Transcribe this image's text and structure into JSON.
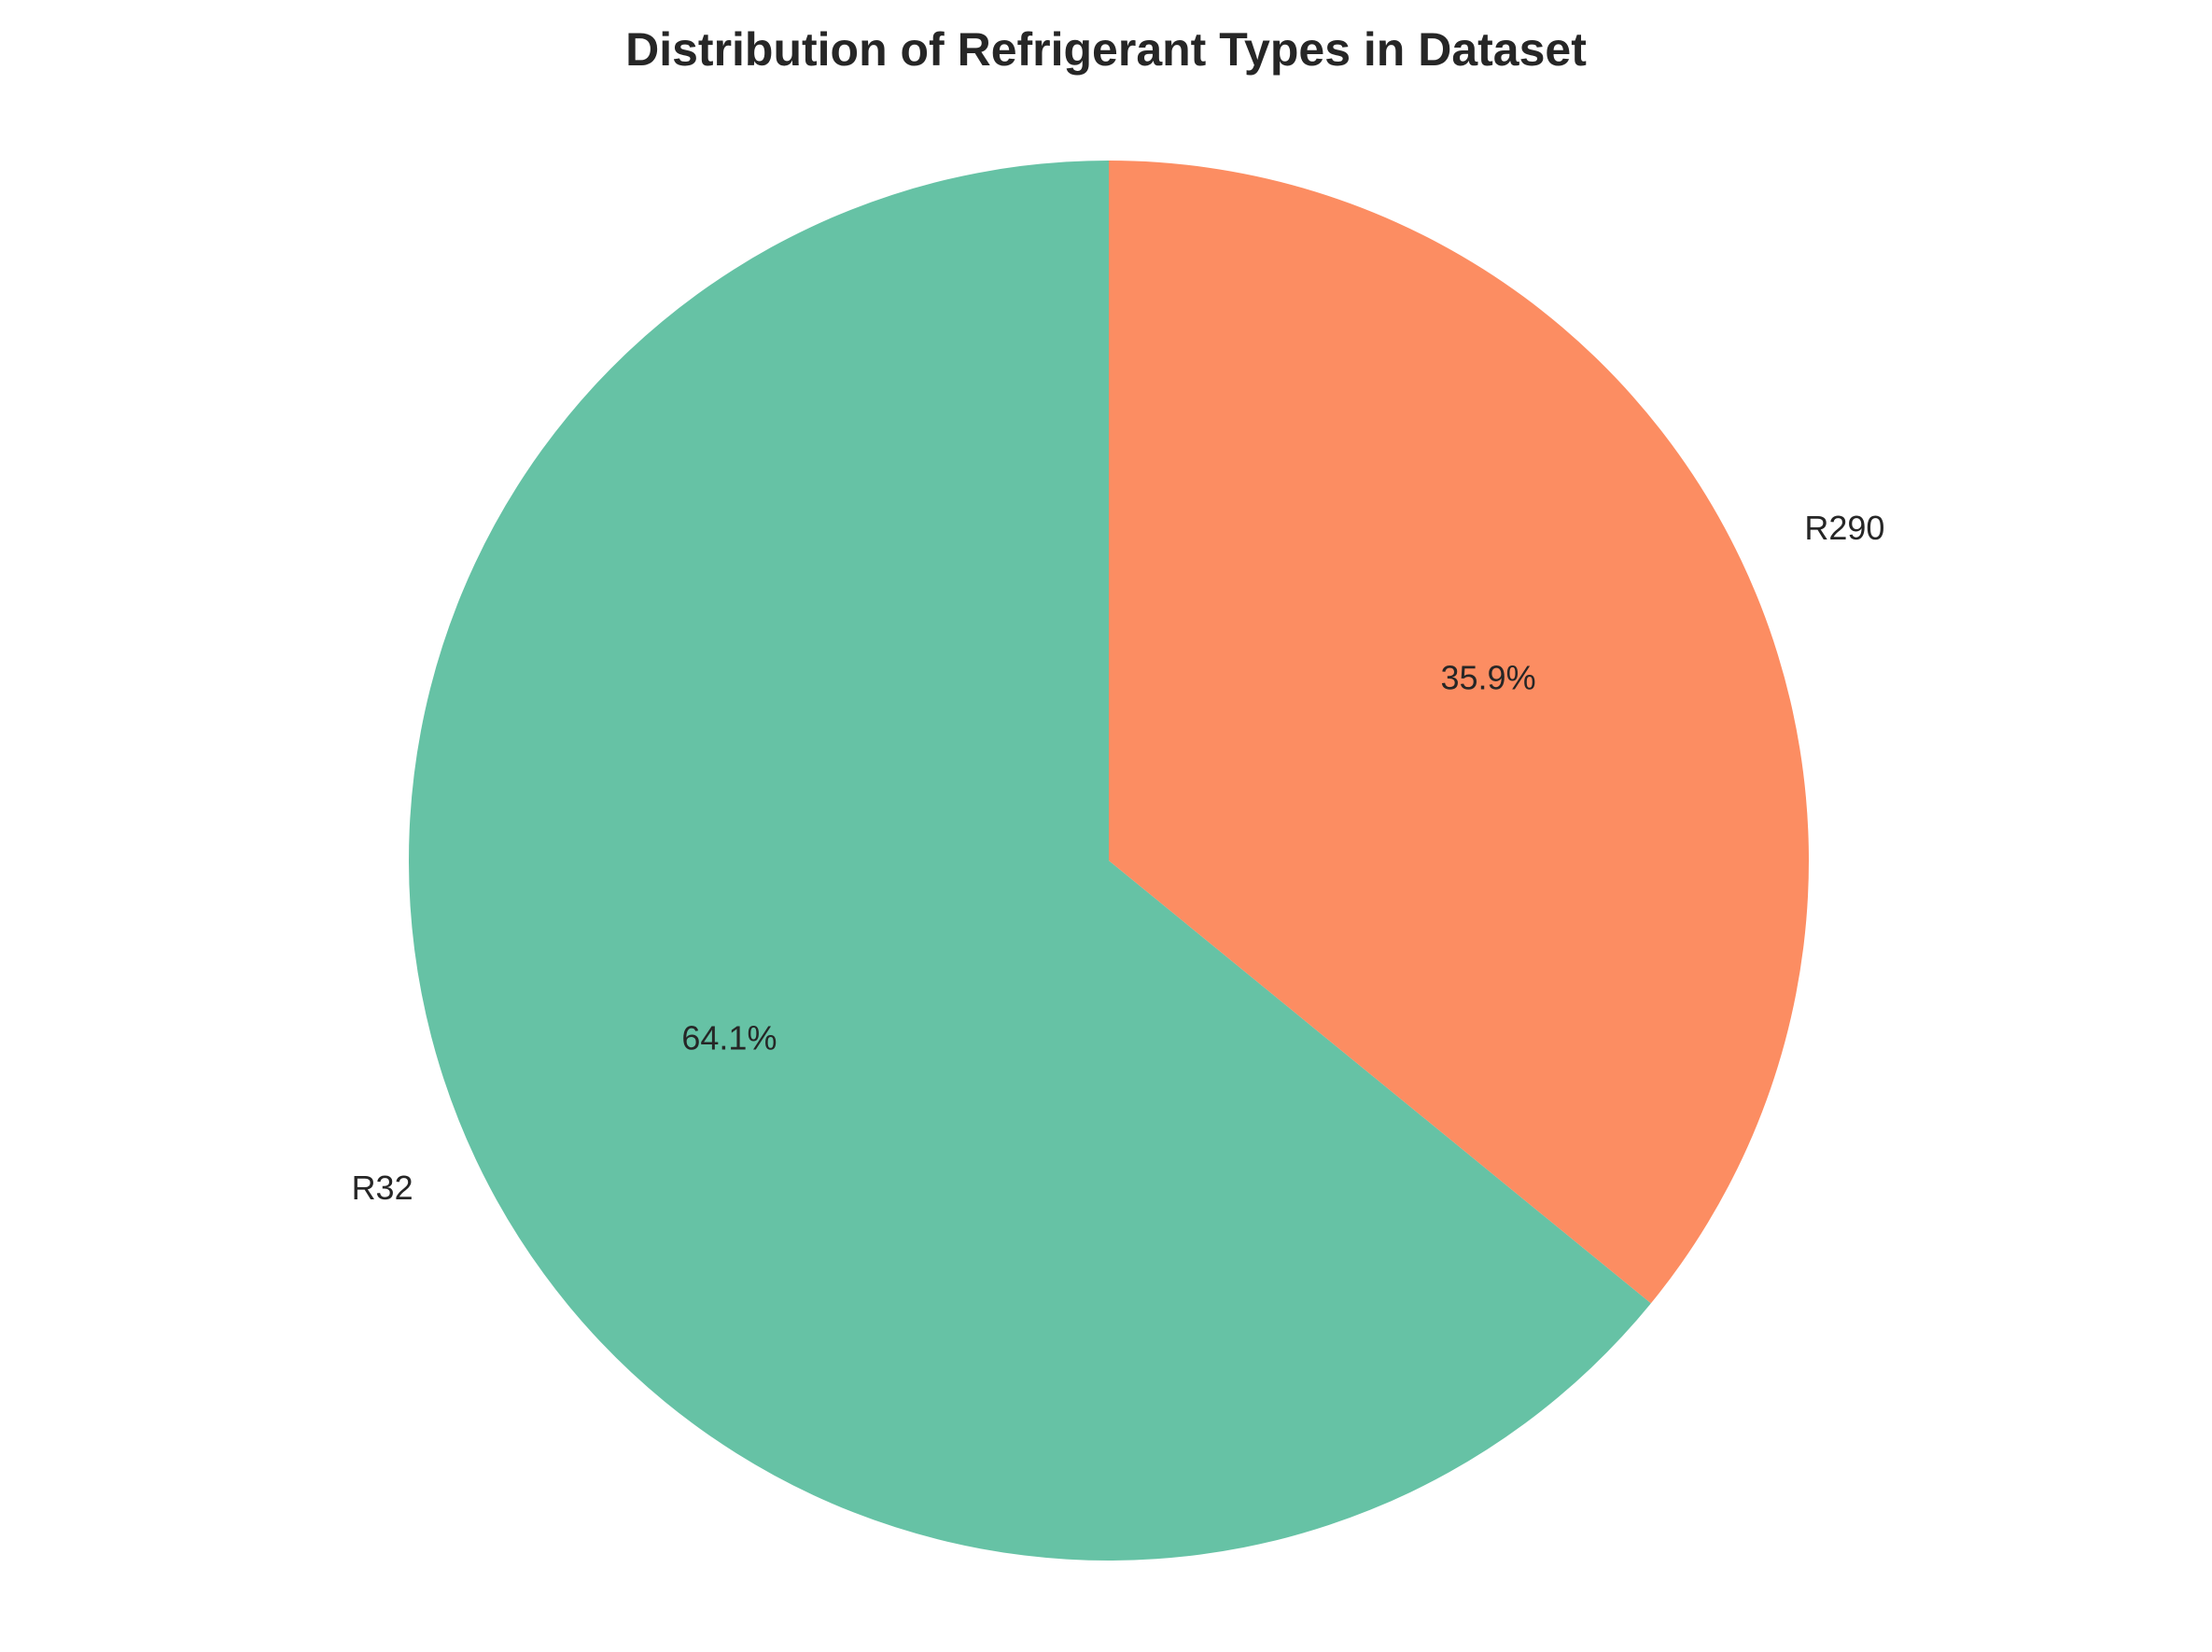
{
  "chart_data": {
    "type": "pie",
    "title": "Distribution of Refrigerant Types in Dataset",
    "categories": [
      "R32",
      "R290"
    ],
    "values": [
      64.1,
      35.9
    ],
    "percent_labels": [
      "64.1%",
      "35.9%"
    ],
    "colors": [
      "#66c2a5",
      "#fc8d62"
    ],
    "start_angle_deg": 90,
    "direction": "counterclockwise",
    "legend": "none"
  }
}
